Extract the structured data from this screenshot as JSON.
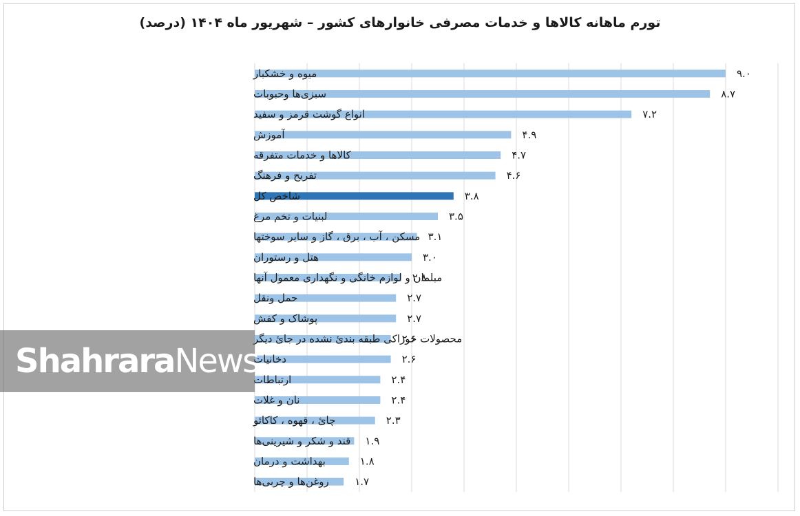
{
  "title": "تورم ماهانه کالاها و خدمات مصرفی خانوارهای کشور – شهریور ماه ۱۴۰۴ (درصد)",
  "watermark": {
    "part1": "Shahrara",
    "part2": "News"
  },
  "colors": {
    "bar": "#9dc3e6",
    "highlight": "#2e75b6",
    "grid": "#d9d9d9"
  },
  "chart_data": {
    "type": "bar",
    "orientation": "horizontal",
    "title": "تورم ماهانه کالاها و خدمات مصرفی خانوارهای کشور – شهریور ماه ۱۴۰۴ (درصد)",
    "categories": [
      "میوه و خشکبار",
      "سبزی‌ها وحبوبات",
      "انواع گوشت قرمز و سفید",
      "آموزش",
      "کالاها و خدمات متفرقه",
      "تفریح و فرهنگ",
      "شاخص کل",
      "لبنیات و تخم مرغ",
      "مسکن ، آب ، برق ، گاز و سایر سوختها",
      "هتل و رستوران",
      "مبلمان و لوازم خانگی و نگهداری معمول آنها",
      "حمل ونقل",
      "پوشاک و کفش",
      "محصولات خوراکی طبقه بندیٔ نشده در جایٔ دیگر",
      "دخانیات",
      "ارتباطات",
      "نان و غلات",
      "چایٔ ، قهوه ، کاکائو",
      "قند و شکر و شیرینی‌ها",
      "بهداشت و درمان",
      "روغن‌ها و چربی‌ها"
    ],
    "values": [
      9.0,
      8.7,
      7.2,
      4.9,
      4.7,
      4.6,
      3.8,
      3.5,
      3.1,
      3.0,
      2.8,
      2.7,
      2.7,
      2.6,
      2.6,
      2.4,
      2.4,
      2.3,
      1.9,
      1.8,
      1.7
    ],
    "value_labels": [
      "۹.۰",
      "۸.۷",
      "۷.۲",
      "۴.۹",
      "۴.۷",
      "۴.۶",
      "۳.۸",
      "۳.۵",
      "۳.۱",
      "۳.۰",
      "۲.۸",
      "۲.۷",
      "۲.۷",
      "۲.۶",
      "۲.۶",
      "۲.۴",
      "۲.۴",
      "۲.۳",
      "۱.۹",
      "۱.۸",
      "۱.۷"
    ],
    "highlight_category": "شاخص کل",
    "xlim": [
      0,
      10
    ],
    "grid": true,
    "legend": "none"
  }
}
